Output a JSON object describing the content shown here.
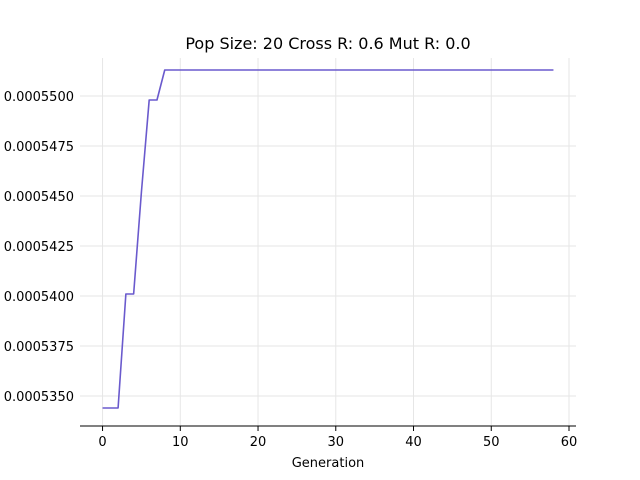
{
  "chart_data": {
    "type": "line",
    "title": "Pop Size: 20 Cross R: 0.6 Mut R: 0.0",
    "xlabel": "Generation",
    "ylabel": "",
    "grid": true,
    "xlim": [
      -2.9,
      60.9
    ],
    "ylim": [
      0.0005335,
      0.0005519
    ],
    "xticks": [
      0,
      10,
      20,
      30,
      40,
      50,
      60
    ],
    "xtick_labels": [
      "0",
      "10",
      "20",
      "30",
      "40",
      "50",
      "60"
    ],
    "yticks": [
      0.000535,
      0.0005375,
      0.00054,
      0.0005425,
      0.000545,
      0.0005475,
      0.00055
    ],
    "ytick_labels": [
      "0.0005350",
      "0.0005375",
      "0.0005400",
      "0.0005425",
      "0.0005450",
      "0.0005475",
      "0.0005500"
    ],
    "series": [
      {
        "color": "#6a5acd",
        "x": [
          0,
          1,
          2,
          3,
          4,
          5,
          6,
          7,
          8,
          9,
          10,
          15,
          20,
          25,
          30,
          35,
          40,
          45,
          50,
          55,
          58
        ],
        "y": [
          0.0005344,
          0.0005344,
          0.0005344,
          0.0005401,
          0.0005401,
          0.0005452,
          0.0005498,
          0.0005498,
          0.0005513,
          0.0005513,
          0.0005513,
          0.0005513,
          0.0005513,
          0.0005513,
          0.0005513,
          0.0005513,
          0.0005513,
          0.0005513,
          0.0005513,
          0.0005513,
          0.0005513
        ]
      }
    ]
  }
}
